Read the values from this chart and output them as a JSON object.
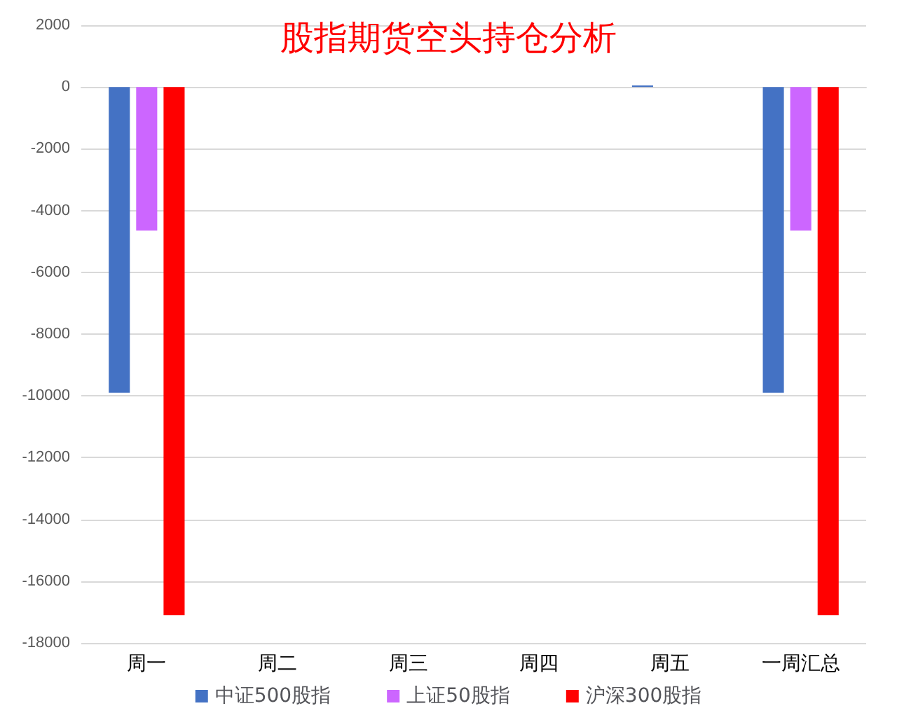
{
  "chart_data": {
    "type": "bar",
    "title": "股指期货空头持仓分析",
    "categories": [
      "周一",
      "周二",
      "周三",
      "周四",
      "周五",
      "一周汇总"
    ],
    "series": [
      {
        "name": "中证500股指",
        "color": "#4472c4",
        "values": [
          -9900,
          0,
          0,
          0,
          50,
          -9900
        ]
      },
      {
        "name": "上证50股指",
        "color": "#cc66ff",
        "values": [
          -4650,
          0,
          0,
          0,
          0,
          -4650
        ]
      },
      {
        "name": "沪深300股指",
        "color": "#ff0000",
        "values": [
          -17100,
          0,
          0,
          0,
          0,
          -17100
        ]
      }
    ],
    "ylim": [
      -18000,
      2000
    ],
    "yticks": [
      -18000,
      -16000,
      -14000,
      -12000,
      -10000,
      -8000,
      -6000,
      -4000,
      -2000,
      0,
      2000
    ],
    "grid": "y",
    "legend": "bottom"
  }
}
